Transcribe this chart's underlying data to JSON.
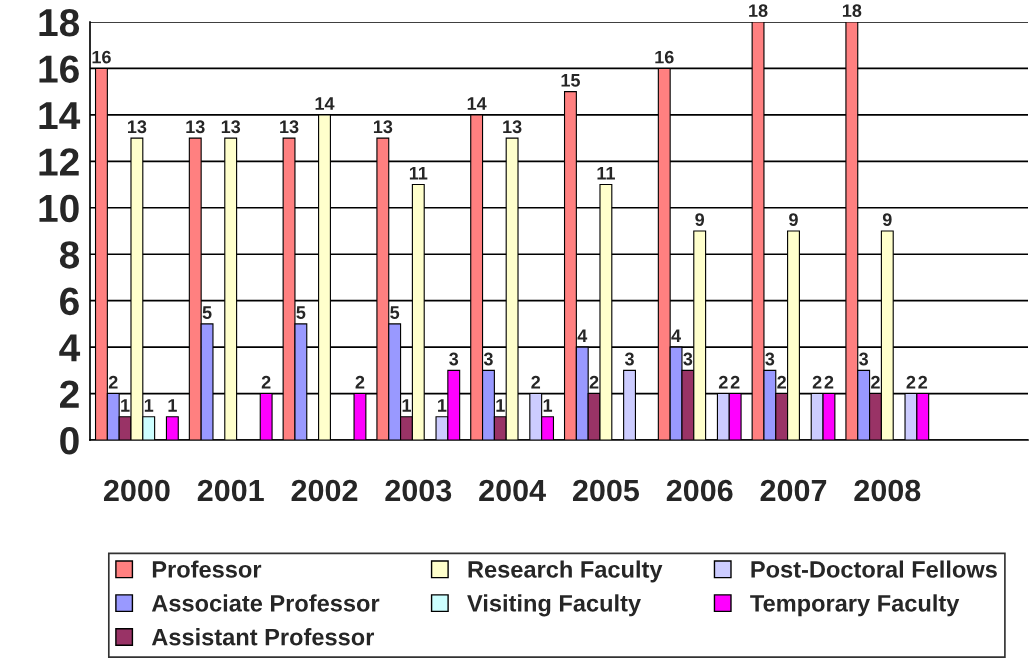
{
  "chart_data": {
    "type": "bar",
    "categories": [
      "2000",
      "2001",
      "2002",
      "2003",
      "2004",
      "2005",
      "2006",
      "2007",
      "2008",
      null
    ],
    "series": [
      {
        "name": "Professor",
        "color": "#ff8080",
        "values": [
          16,
          13,
          13,
          13,
          14,
          15,
          16,
          18,
          18,
          null
        ]
      },
      {
        "name": "Associate Professor",
        "color": "#9999ff",
        "values": [
          2,
          5,
          5,
          5,
          3,
          4,
          4,
          3,
          3,
          null
        ]
      },
      {
        "name": "Assistant Professor",
        "color": "#993366",
        "values": [
          1,
          null,
          null,
          1,
          1,
          2,
          3,
          2,
          2,
          null
        ]
      },
      {
        "name": "Research Faculty",
        "color": "#ffffcc",
        "values": [
          13,
          13,
          14,
          11,
          13,
          11,
          9,
          9,
          9,
          null
        ]
      },
      {
        "name": "Visiting Faculty",
        "color": "#ccffff",
        "values": [
          1,
          null,
          null,
          null,
          null,
          null,
          null,
          null,
          null,
          null
        ]
      },
      {
        "name": "Post-Doctoral Fellows",
        "color": "#ccccff",
        "values": [
          null,
          null,
          null,
          1,
          2,
          3,
          2,
          2,
          2,
          null
        ]
      },
      {
        "name": "Temporary Faculty",
        "color": "#ff00ff",
        "values": [
          1,
          2,
          2,
          3,
          1,
          null,
          2,
          2,
          2,
          null
        ]
      }
    ],
    "ylim": [
      0,
      18
    ],
    "yticks": [
      0,
      2,
      4,
      6,
      8,
      10,
      12,
      14,
      16,
      18
    ],
    "grid": "y",
    "legend": "bottom",
    "data_labels": true
  }
}
